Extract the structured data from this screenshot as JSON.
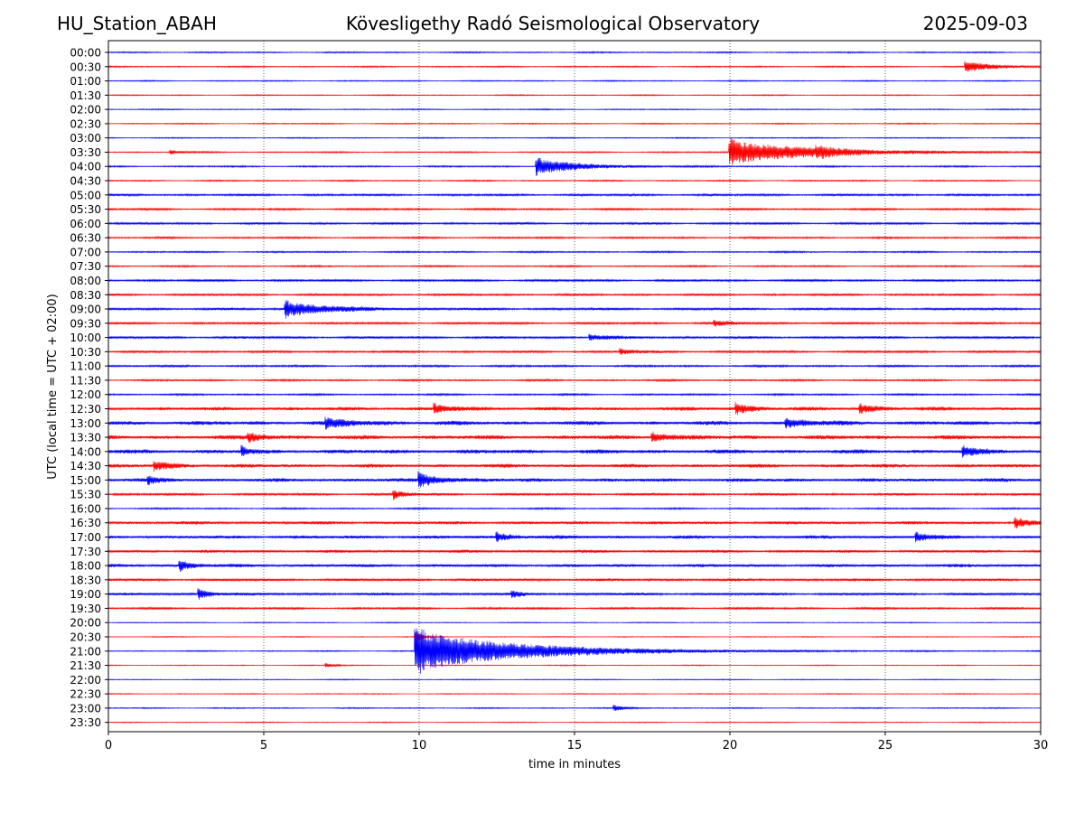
{
  "header": {
    "station": "HU_Station_ABAH",
    "title": "Kövesligethy Radó Seismological Observatory",
    "date": "2025-09-03"
  },
  "chart_data": {
    "type": "line",
    "title": "Kövesligethy Radó Seismological Observatory",
    "xlabel": "time in minutes",
    "ylabel": "UTC (local time = UTC + 02:00)",
    "xlim": [
      0,
      30
    ],
    "x_ticks": [
      "0",
      "5",
      "10",
      "15",
      "20",
      "25",
      "30"
    ],
    "x_tick_values": [
      0,
      5,
      10,
      15,
      20,
      25,
      30
    ],
    "vertical_gridlines_at": [
      5,
      10,
      15,
      20,
      25
    ],
    "grid": "x-dotted",
    "trace_colors": [
      "#0000ff",
      "#ff0000"
    ],
    "rows": [
      "00:00",
      "00:30",
      "01:00",
      "01:30",
      "02:00",
      "02:30",
      "03:00",
      "03:30",
      "04:00",
      "04:30",
      "05:00",
      "05:30",
      "06:00",
      "06:30",
      "07:00",
      "07:30",
      "08:00",
      "08:30",
      "09:00",
      "09:30",
      "10:00",
      "10:30",
      "11:00",
      "11:30",
      "12:00",
      "12:30",
      "13:00",
      "13:30",
      "14:00",
      "14:30",
      "15:00",
      "15:30",
      "16:00",
      "16:30",
      "17:00",
      "17:30",
      "18:00",
      "18:30",
      "19:00",
      "19:30",
      "20:00",
      "20:30",
      "21:00",
      "21:30",
      "22:00",
      "22:30",
      "23:00",
      "23:30"
    ],
    "noise": [
      0.6,
      0.6,
      0.5,
      0.5,
      0.5,
      0.5,
      0.5,
      0.6,
      0.7,
      0.6,
      1.0,
      0.9,
      1.0,
      0.8,
      0.7,
      0.7,
      1.0,
      1.0,
      1.1,
      1.0,
      1.1,
      1.0,
      0.9,
      0.8,
      0.8,
      1.6,
      1.8,
      1.8,
      1.8,
      1.6,
      1.6,
      1.0,
      0.7,
      1.4,
      1.5,
      1.3,
      1.4,
      1.2,
      1.2,
      0.9,
      0.4,
      0.4,
      0.5,
      0.4,
      0.4,
      0.4,
      0.5,
      0.4
    ],
    "events": [
      {
        "row": "00:30",
        "start": 27.6,
        "amp": 5,
        "dur": 1.5
      },
      {
        "row": "03:30",
        "start": 20.0,
        "amp": 13,
        "dur": 4.0
      },
      {
        "row": "03:30",
        "start": 22.8,
        "amp": 4,
        "dur": 0.6
      },
      {
        "row": "03:30",
        "start": 2.0,
        "amp": 2,
        "dur": 0.5
      },
      {
        "row": "04:00",
        "start": 13.8,
        "amp": 8,
        "dur": 2.0
      },
      {
        "row": "09:00",
        "start": 5.7,
        "amp": 8,
        "dur": 2.0
      },
      {
        "row": "09:30",
        "start": 19.5,
        "amp": 2.5,
        "dur": 0.8
      },
      {
        "row": "10:00",
        "start": 15.5,
        "amp": 2.5,
        "dur": 1.0
      },
      {
        "row": "10:30",
        "start": 16.5,
        "amp": 2.5,
        "dur": 0.8
      },
      {
        "row": "12:30",
        "start": 10.5,
        "amp": 4,
        "dur": 0.8
      },
      {
        "row": "12:30",
        "start": 20.2,
        "amp": 5,
        "dur": 0.8
      },
      {
        "row": "12:30",
        "start": 24.2,
        "amp": 4,
        "dur": 0.8
      },
      {
        "row": "13:00",
        "start": 7.0,
        "amp": 4,
        "dur": 1.5
      },
      {
        "row": "13:00",
        "start": 21.8,
        "amp": 4,
        "dur": 1.2
      },
      {
        "row": "13:30",
        "start": 4.5,
        "amp": 4,
        "dur": 0.8
      },
      {
        "row": "13:30",
        "start": 17.5,
        "amp": 5,
        "dur": 0.8
      },
      {
        "row": "14:00",
        "start": 4.3,
        "amp": 5,
        "dur": 0.3
      },
      {
        "row": "14:00",
        "start": 27.5,
        "amp": 5,
        "dur": 0.6
      },
      {
        "row": "14:30",
        "start": 1.5,
        "amp": 4,
        "dur": 0.8
      },
      {
        "row": "15:00",
        "start": 10.0,
        "amp": 7,
        "dur": 1.0
      },
      {
        "row": "15:00",
        "start": 1.3,
        "amp": 3,
        "dur": 0.6
      },
      {
        "row": "15:30",
        "start": 9.2,
        "amp": 4,
        "dur": 0.6
      },
      {
        "row": "16:30",
        "start": 29.2,
        "amp": 5,
        "dur": 0.6
      },
      {
        "row": "17:00",
        "start": 12.5,
        "amp": 4,
        "dur": 0.8
      },
      {
        "row": "17:00",
        "start": 26.0,
        "amp": 4,
        "dur": 0.6
      },
      {
        "row": "18:00",
        "start": 2.3,
        "amp": 5,
        "dur": 0.6
      },
      {
        "row": "19:00",
        "start": 2.9,
        "amp": 5,
        "dur": 0.6
      },
      {
        "row": "19:00",
        "start": 13.0,
        "amp": 3,
        "dur": 0.5
      },
      {
        "row": "20:30",
        "start": 9.9,
        "amp": 6,
        "dur": 0.3
      },
      {
        "row": "21:00",
        "start": 9.9,
        "amp": 22,
        "dur": 5.0
      },
      {
        "row": "21:30",
        "start": 7.0,
        "amp": 2,
        "dur": 0.5
      },
      {
        "row": "23:00",
        "start": 16.3,
        "amp": 2.5,
        "dur": 0.6
      }
    ]
  }
}
